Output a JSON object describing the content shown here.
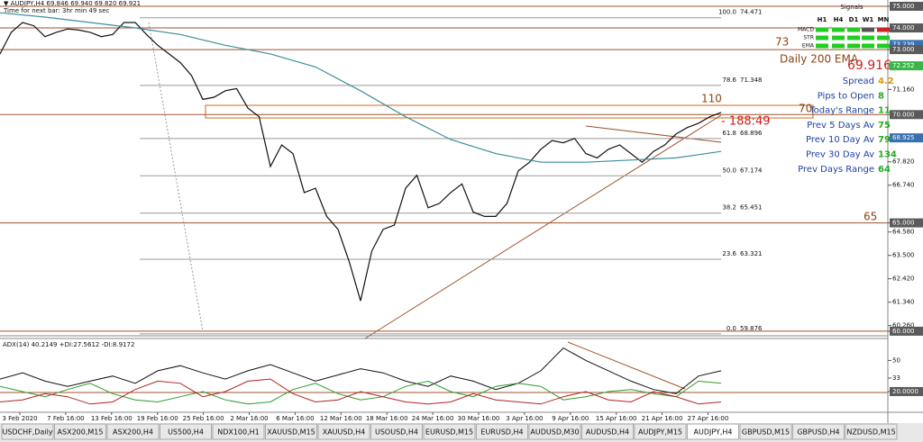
{
  "header": {
    "symbol_line": "▼ AUDJPY,H4 69.846 69.940 69.820 69.921",
    "timer": "Time for next bar: 3hr min 49 sec"
  },
  "chart_data": [
    {
      "type": "line",
      "values": [
        72.8,
        73.8,
        74.25,
        74.1,
        73.6,
        73.8,
        73.95,
        73.9,
        73.8,
        73.6,
        73.7,
        74.25,
        74.25,
        73.7,
        73.2,
        72.8,
        72.4,
        71.8,
        70.7,
        70.8,
        71.1,
        71.2,
        70.3,
        69.9,
        67.6,
        68.6,
        68.2,
        66.4,
        66.6,
        65.3,
        64.7,
        63.2,
        61.4,
        63.7,
        64.7,
        64.9,
        66.6,
        67.2,
        65.7,
        65.9,
        66.4,
        66.8,
        65.5,
        65.3,
        65.3,
        65.9,
        67.4,
        67.8,
        68.4,
        68.8,
        68.7,
        68.9,
        68.2,
        68.0,
        68.4,
        68.6,
        68.2,
        67.8,
        68.3,
        68.6,
        69.1,
        69.4,
        69.6,
        69.9,
        70.1
      ],
      "color": "#111111",
      "ema": [
        74.7,
        74.5,
        74.25,
        74.0,
        73.7,
        73.2,
        72.8,
        72.2,
        71.1,
        69.9,
        68.85,
        68.2,
        67.8,
        67.8,
        67.9,
        68.0,
        68.3
      ],
      "ema_color": "#3a8f9a",
      "ylim": [
        59.83,
        75.29
      ],
      "yticks": [
        {
          "value": 75,
          "label": "75.000",
          "highlight": "#5a5a5a"
        },
        {
          "value": 74,
          "label": "74.000",
          "highlight": "#5a5a5a"
        },
        {
          "value": 73.239,
          "label": "73.239",
          "highlight": "#3a6fb0"
        },
        {
          "value": 73,
          "label": "73.000",
          "highlight": "#5a5a5a"
        },
        {
          "value": 72.252,
          "label": "72.252",
          "highlight": "#3cb44b"
        },
        {
          "value": 71.16,
          "label": "71.160"
        },
        {
          "value": 70,
          "label": "70.000",
          "highlight": "#5a5a5a"
        },
        {
          "value": 68.925,
          "label": "68.925",
          "highlight": "#3a6fb0"
        },
        {
          "value": 67.82,
          "label": "67.820"
        },
        {
          "value": 66.74,
          "label": "66.740"
        },
        {
          "value": 65,
          "label": "65.000",
          "highlight": "#5a5a5a"
        },
        {
          "value": 64.58,
          "label": "64.580"
        },
        {
          "value": 63.5,
          "label": "63.500"
        },
        {
          "value": 62.42,
          "label": "62.420"
        },
        {
          "value": 61.34,
          "label": "61.340"
        },
        {
          "value": 60.26,
          "label": "60.260"
        },
        {
          "value": 60,
          "label": "60.000",
          "highlight": "#5a5a5a"
        }
      ],
      "levels": [
        75,
        74,
        73,
        70,
        65,
        60
      ],
      "level_color": "#a0522d",
      "fib_levels": [
        {
          "ratio": "100.0",
          "price": 74.471
        },
        {
          "ratio": "78.6",
          "price": 71.348
        },
        {
          "ratio": "61.8",
          "price": 68.896
        },
        {
          "ratio": "50.0",
          "price": 67.174
        },
        {
          "ratio": "38.2",
          "price": 65.451
        },
        {
          "ratio": "23.6",
          "price": 63.321
        },
        {
          "ratio": "0.0",
          "price": 59.876
        }
      ],
      "annotations": [
        "73",
        "Daily 200 EMA",
        "69.916",
        "110",
        "70",
        "65",
        "- 188:49"
      ],
      "x_labels": [
        "3 Feb 2020",
        "7 Feb 16:00",
        "13 Feb 16:00",
        "19 Feb 16:00",
        "25 Feb 16:00",
        "2 Mar 16:00",
        "6 Mar 16:00",
        "12 Mar 16:00",
        "18 Mar 16:00",
        "24 Mar 16:00",
        "30 Mar 16:00",
        "3 Apr 16:00",
        "9 Apr 16:00",
        "15 Apr 16:00",
        "21 Apr 16:00",
        "27 Apr 16:00"
      ]
    },
    {
      "type": "line",
      "title": "ADX(14) 40.2149 +DI:27.5612 -DI:8.9172",
      "series": [
        {
          "color": "#111111",
          "values": [
            32,
            38,
            30,
            25,
            30,
            35,
            28,
            40,
            45,
            38,
            32,
            40,
            46,
            38,
            30,
            36,
            42,
            38,
            30,
            25,
            35,
            30,
            22,
            28,
            40,
            62,
            50,
            40,
            30,
            22,
            18,
            35,
            40
          ]
        },
        {
          "color": "#2e9b2e",
          "values": [
            25,
            20,
            15,
            22,
            28,
            18,
            12,
            10,
            15,
            20,
            12,
            8,
            10,
            22,
            28,
            18,
            12,
            15,
            25,
            30,
            20,
            15,
            25,
            28,
            25,
            12,
            15,
            20,
            22,
            18,
            15,
            30,
            28
          ]
        },
        {
          "color": "#b22222",
          "values": [
            10,
            12,
            18,
            15,
            8,
            10,
            22,
            30,
            28,
            15,
            20,
            30,
            32,
            18,
            10,
            12,
            20,
            15,
            10,
            8,
            10,
            18,
            12,
            10,
            8,
            15,
            20,
            12,
            10,
            20,
            15,
            8,
            10
          ]
        }
      ],
      "ylim": [
        0,
        71.2
      ],
      "yticks": [
        50,
        33,
        {
          "value": 20,
          "label": "20.0000"
        }
      ]
    }
  ],
  "signals": {
    "title": "Signals",
    "columns": [
      "H1",
      "H4",
      "D1",
      "W1",
      "MN"
    ],
    "rows": [
      {
        "name": "MACD",
        "colors": [
          "#22cc22",
          "#22cc22",
          "#22cc22",
          "#555555",
          "#cc2222"
        ]
      },
      {
        "name": "STR",
        "colors": [
          "#22cc22",
          "#22cc22",
          "#22cc22",
          "#22cc22",
          "#22cc22"
        ]
      },
      {
        "name": "EMA",
        "colors": [
          "#22cc22",
          "#22cc22",
          "#22cc22",
          "#22cc22",
          "#22cc22"
        ]
      }
    ]
  },
  "info": [
    {
      "label": "Spread",
      "value": "4.2",
      "color": "#e69500"
    },
    {
      "label": "Pips to Open",
      "value": "8",
      "color": "#22aa22"
    },
    {
      "label": "Today's Range",
      "value": "11",
      "color": "#22aa22"
    },
    {
      "label": "Prev 5 Days Av",
      "value": "75",
      "color": "#22aa22"
    },
    {
      "label": "Prev 10 Day Av",
      "value": "79",
      "color": "#22aa22"
    },
    {
      "label": "Prev 30 Day Av",
      "value": "134",
      "color": "#22aa22"
    },
    {
      "label": "Prev Days Range",
      "value": "64",
      "color": "#22aa22"
    }
  ],
  "tabs": [
    "USDCHF,Daily",
    "ASX200,M15",
    "ASX200,H4",
    "US500,H4",
    "NDX100,H1",
    "XAUUSD,M15",
    "XAUUSD,H4",
    "USOUSD,H4",
    "EURUSD,M15",
    "EURUSD,H4",
    "AUDUSD,M30",
    "AUDUSD,H4",
    "AUDJPY,M15",
    "AUDJPY,H4",
    "GBPUSD,M15",
    "GBPUSD,H4",
    "NZDUSD,M15"
  ],
  "active_tab": 13
}
